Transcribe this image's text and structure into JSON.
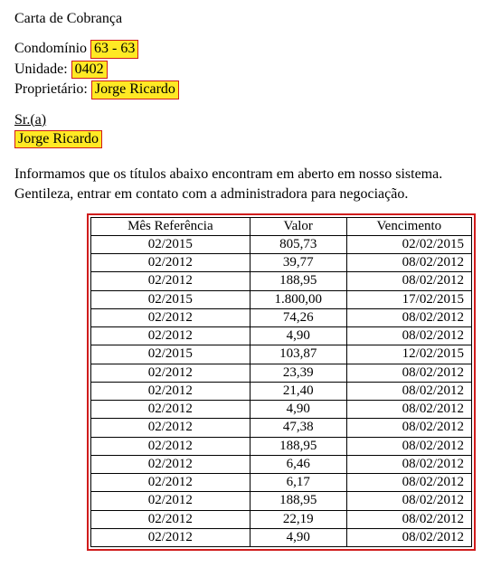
{
  "header": {
    "title": "Carta de Cobrança",
    "condo_label": "Condomínio",
    "condo_value": "63 - 63",
    "unit_label": "Unidade:",
    "unit_value": "0402",
    "owner_label": "Proprietário:",
    "owner_value": "Jorge Ricardo",
    "salutation": "Sr.(a)",
    "recipient": "Jorge Ricardo"
  },
  "paragraph": {
    "line1": "Informamos que os títulos abaixo encontram em aberto em nosso sistema.",
    "line2": "Gentileza, entrar em contato com a administradora para negociação."
  },
  "table": {
    "columns": [
      "Mês Referência",
      "Valor",
      "Vencimento"
    ],
    "rows": [
      [
        "02/2015",
        "805,73",
        "02/02/2015"
      ],
      [
        "02/2012",
        "39,77",
        "08/02/2012"
      ],
      [
        "02/2012",
        "188,95",
        "08/02/2012"
      ],
      [
        "02/2015",
        "1.800,00",
        "17/02/2015"
      ],
      [
        "02/2012",
        "74,26",
        "08/02/2012"
      ],
      [
        "02/2012",
        "4,90",
        "08/02/2012"
      ],
      [
        "02/2015",
        "103,87",
        "12/02/2015"
      ],
      [
        "02/2012",
        "23,39",
        "08/02/2012"
      ],
      [
        "02/2012",
        "21,40",
        "08/02/2012"
      ],
      [
        "02/2012",
        "4,90",
        "08/02/2012"
      ],
      [
        "02/2012",
        "47,38",
        "08/02/2012"
      ],
      [
        "02/2012",
        "188,95",
        "08/02/2012"
      ],
      [
        "02/2012",
        "6,46",
        "08/02/2012"
      ],
      [
        "02/2012",
        "6,17",
        "08/02/2012"
      ],
      [
        "02/2012",
        "188,95",
        "08/02/2012"
      ],
      [
        "02/2012",
        "22,19",
        "08/02/2012"
      ],
      [
        "02/2012",
        "4,90",
        "08/02/2012"
      ]
    ],
    "col_align": [
      "center",
      "center",
      "right"
    ],
    "border_color": "#d01c1c",
    "highlight_bg": "#ffe924"
  }
}
